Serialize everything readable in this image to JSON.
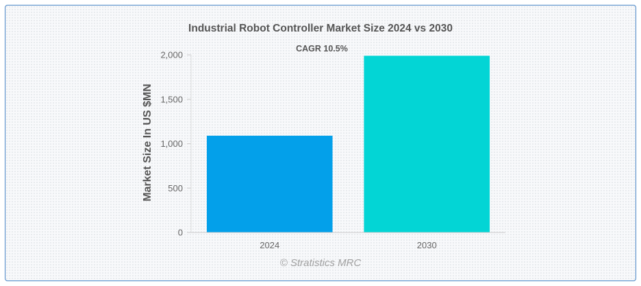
{
  "chart_data": {
    "type": "bar",
    "title": "Industrial Robot Controller Market Size 2024 vs 2030",
    "xlabel": "",
    "ylabel": "Market Size In US $MN",
    "categories": [
      "2024",
      "2030"
    ],
    "values": [
      1090,
      1990
    ],
    "colors": [
      "#03a0ea",
      "#03d5d5"
    ],
    "ylim": [
      0,
      2000
    ],
    "yticks": [
      0,
      500,
      1000,
      1500,
      2000
    ],
    "ytick_labels": [
      "0",
      "500",
      "1,000",
      "1,500",
      "2,000"
    ],
    "annotation": "CAGR 10.5%",
    "grid": false,
    "legend": "none"
  },
  "watermark": "© Stratistics MRC"
}
